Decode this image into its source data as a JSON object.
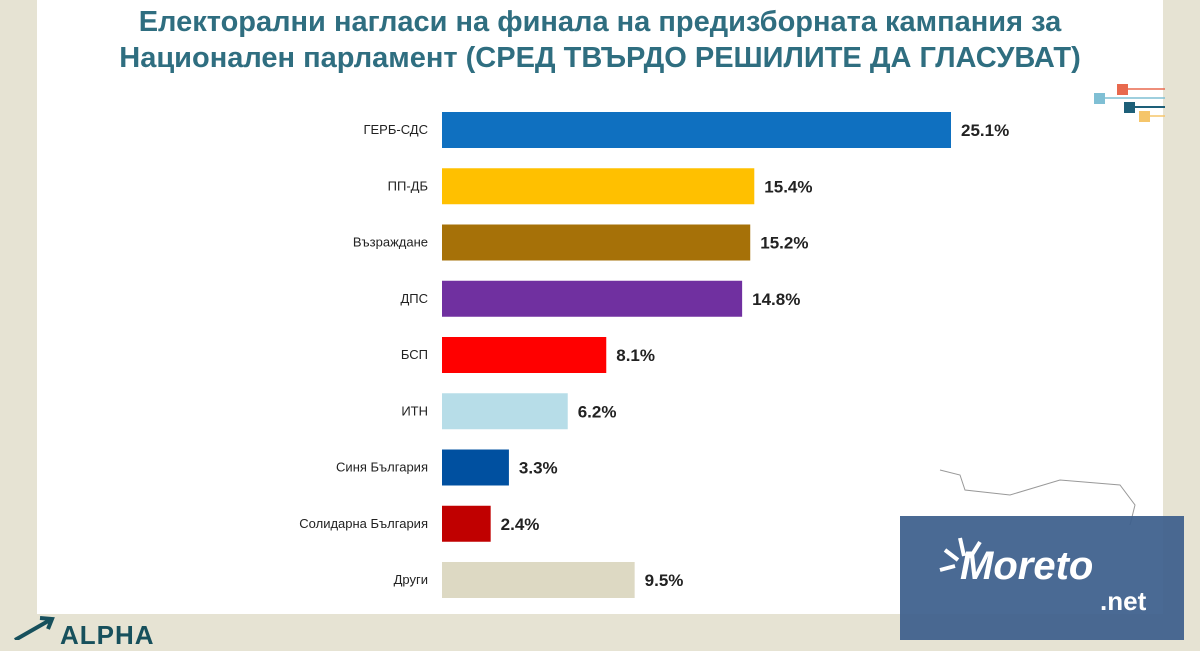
{
  "title": "Електорални нагласи на финала на предизборната кампания за Национален парламент (СРЕД ТВЪРДО РЕШИЛИТЕ ДА ГЛАСУВАТ)",
  "chart_data": {
    "type": "bar",
    "orientation": "horizontal",
    "title": "Електорални нагласи на финала на предизборната кампания за Национален парламент (СРЕД ТВЪРДО РЕШИЛИТЕ ДА ГЛАСУВАТ)",
    "categories": [
      "ГЕРБ-СДС",
      "ПП-ДБ",
      "Възраждане",
      "ДПС",
      "БСП",
      "ИТН",
      "Синя България",
      "Солидарна България",
      "Други"
    ],
    "values": [
      25.1,
      15.4,
      15.2,
      14.8,
      8.1,
      6.2,
      3.3,
      2.4,
      9.5
    ],
    "value_labels": [
      "25.1%",
      "15.4%",
      "15.2%",
      "14.8%",
      "8.1%",
      "6.2%",
      "3.3%",
      "2.4%",
      "9.5%"
    ],
    "colors": [
      "#0f70c0",
      "#ffc000",
      "#a67108",
      "#7030a0",
      "#ff0000",
      "#b7dde8",
      "#0050a0",
      "#c00000",
      "#ddd9c3"
    ],
    "xlim": [
      0,
      25.1
    ],
    "grid": false,
    "legend": "none"
  },
  "logos": {
    "alpha": "ALPHA",
    "watermark": "Moreto.net"
  }
}
